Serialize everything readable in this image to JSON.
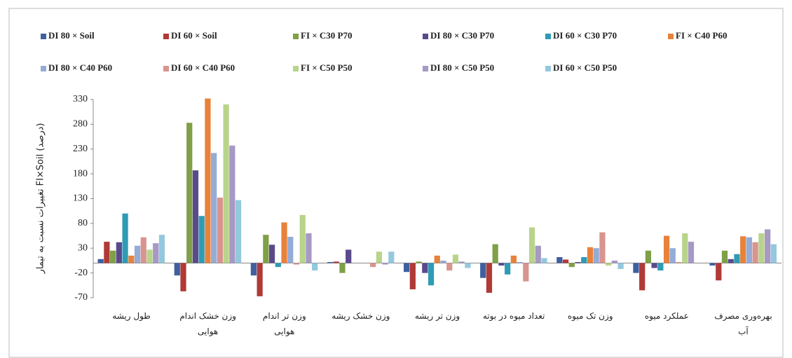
{
  "chart_data": {
    "type": "bar",
    "y_label": "تغییرات نسبت به تیمار FI×Soil (درصد)",
    "categories": [
      "طول ریشه",
      "وزن خشک اندام\nهوایی",
      "وزن تر اندام\nهوایی",
      "وزن خشک ریشه",
      "وزن تر ریشه",
      "تعداد میوه در بوته",
      "وزن تک میوه",
      "عملکرد میوه",
      "بهره‌وری مصرف\nآب"
    ],
    "series": [
      {
        "name": "DI 80 × Soil",
        "color": "#3f5fa0",
        "values": [
          8,
          -25,
          -25,
          2,
          -18,
          -30,
          12,
          -20,
          -5
        ]
      },
      {
        "name": "DI 60 × Soil",
        "color": "#b03a36",
        "values": [
          43,
          -57,
          -67,
          3,
          -53,
          -60,
          7,
          -55,
          -35
        ]
      },
      {
        "name": "FI × C30 P70",
        "color": "#7fa046",
        "values": [
          25,
          283,
          57,
          -20,
          3,
          38,
          -8,
          25,
          25
        ]
      },
      {
        "name": "DI 80 × C30 P70",
        "color": "#5a4a8c",
        "values": [
          42,
          187,
          37,
          27,
          -20,
          -5,
          2,
          -10,
          8
        ]
      },
      {
        "name": "DI 60 × C30 P70",
        "color": "#2f9bb5",
        "values": [
          100,
          95,
          -8,
          0,
          -45,
          -23,
          12,
          -15,
          18
        ]
      },
      {
        "name": "FI × C40 P60",
        "color": "#e8823a",
        "values": [
          15,
          332,
          82,
          0,
          15,
          15,
          32,
          55,
          54
        ]
      },
      {
        "name": "DI 80 × C40 P60",
        "color": "#94acd6",
        "values": [
          35,
          222,
          53,
          0,
          5,
          2,
          30,
          30,
          52
        ]
      },
      {
        "name": "DI 60 × C40 P60",
        "color": "#d8948f",
        "values": [
          52,
          132,
          -3,
          -8,
          -15,
          -37,
          62,
          2,
          42
        ]
      },
      {
        "name": "FI × C50 P50",
        "color": "#b8d48a",
        "values": [
          27,
          320,
          97,
          23,
          17,
          72,
          -5,
          60,
          60
        ]
      },
      {
        "name": "DI 80 × C50 P50",
        "color": "#a699c4",
        "values": [
          40,
          237,
          60,
          -3,
          3,
          35,
          5,
          43,
          68
        ]
      },
      {
        "name": "DI 60 × C50 P50",
        "color": "#93c8de",
        "values": [
          57,
          127,
          -15,
          23,
          -10,
          10,
          -12,
          0,
          38
        ]
      }
    ],
    "ylim": [
      -70,
      330
    ],
    "yticks": [
      -70,
      -20,
      30,
      80,
      130,
      180,
      230,
      280,
      330
    ],
    "grid": false
  }
}
